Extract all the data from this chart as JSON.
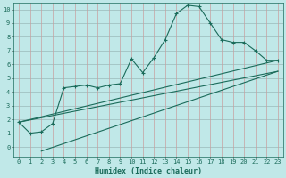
{
  "xlabel": "Humidex (Indice chaleur)",
  "bg_color": "#c0e8e8",
  "line_color": "#1a6b5a",
  "grid_color_h": "#9ababa",
  "grid_color_v": "#c8a0a0",
  "xlim": [
    -0.5,
    23.5
  ],
  "ylim": [
    -0.7,
    10.5
  ],
  "xticks": [
    0,
    1,
    2,
    3,
    4,
    5,
    6,
    7,
    8,
    9,
    10,
    11,
    12,
    13,
    14,
    15,
    16,
    17,
    18,
    19,
    20,
    21,
    22,
    23
  ],
  "yticks": [
    0,
    1,
    2,
    3,
    4,
    5,
    6,
    7,
    8,
    9,
    10
  ],
  "series1_x": [
    0,
    1,
    2,
    3,
    4,
    5,
    6,
    7,
    8,
    9,
    10,
    11,
    12,
    13,
    14,
    15,
    16,
    17,
    18,
    19,
    20,
    21,
    22,
    23
  ],
  "series1_y": [
    1.8,
    1.0,
    1.1,
    1.7,
    4.3,
    4.4,
    4.5,
    4.3,
    4.5,
    4.6,
    6.4,
    5.4,
    6.5,
    7.8,
    9.7,
    10.3,
    10.2,
    9.0,
    7.8,
    7.6,
    7.6,
    7.0,
    6.3,
    6.3
  ],
  "series2_x": [
    0,
    23
  ],
  "series2_y": [
    1.8,
    5.5
  ],
  "series3_x": [
    0,
    23
  ],
  "series3_y": [
    1.8,
    6.3
  ],
  "series4_x": [
    2,
    23
  ],
  "series4_y": [
    -0.3,
    5.5
  ],
  "xlabel_fontsize": 6,
  "tick_fontsize": 5
}
